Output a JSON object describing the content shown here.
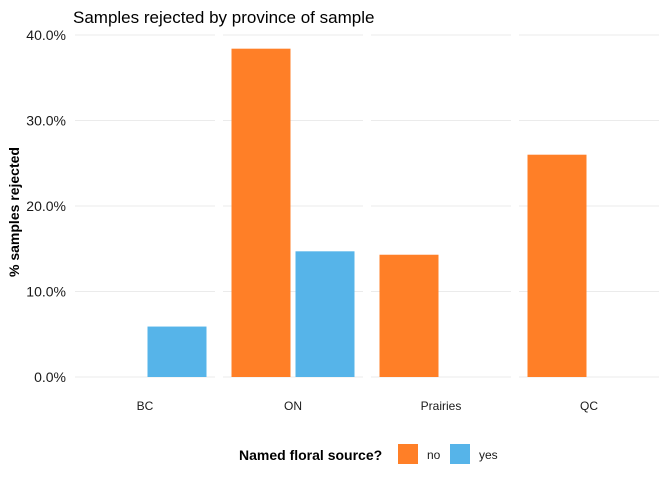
{
  "chart_data": {
    "type": "bar",
    "title": "Samples rejected by province of sample",
    "xlabel": "",
    "ylabel": "% samples rejected",
    "categories": [
      "BC",
      "ON",
      "Prairies",
      "QC"
    ],
    "series": [
      {
        "name": "no",
        "color": "#FF7F27",
        "values": [
          null,
          38.4,
          14.3,
          26.0
        ]
      },
      {
        "name": "yes",
        "color": "#56B4E9",
        "values": [
          5.9,
          14.7,
          null,
          null
        ]
      }
    ],
    "ylim": [
      0,
      40
    ],
    "y_ticks": [
      0,
      10,
      20,
      30,
      40
    ],
    "y_tick_labels": [
      "0.0%",
      "10.0%",
      "20.0%",
      "30.0%",
      "40.0%"
    ],
    "grid": true,
    "facets": true,
    "legend": {
      "title": "Named floral source?",
      "position": "bottom"
    }
  }
}
